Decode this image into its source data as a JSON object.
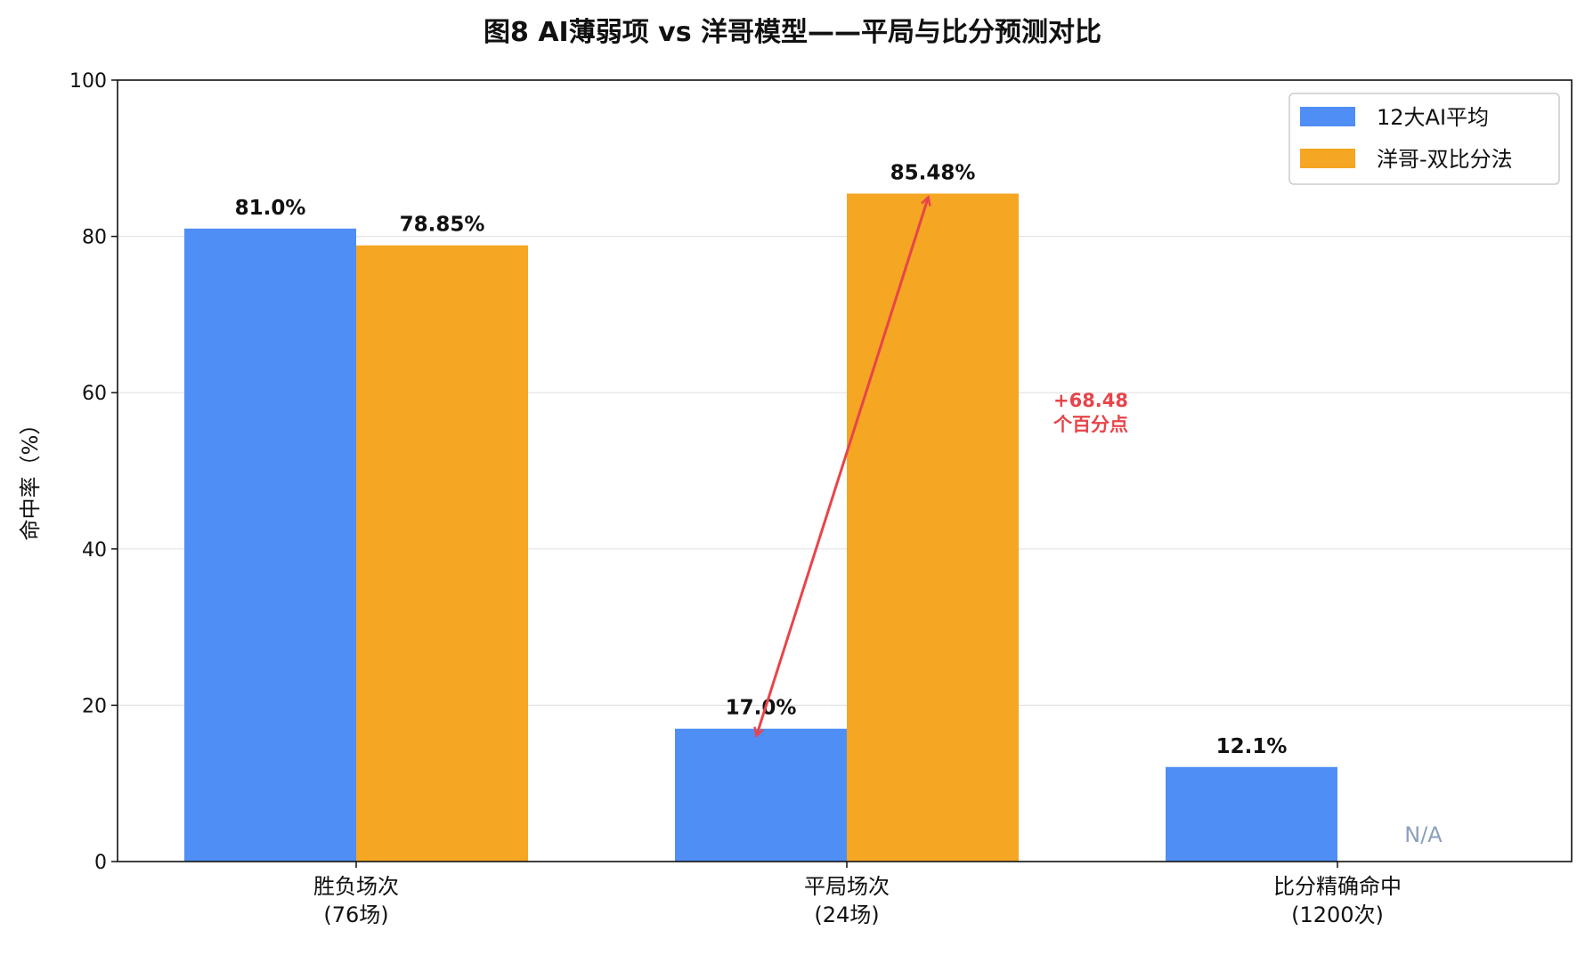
{
  "chart_data": {
    "type": "bar",
    "title": "图8  AI薄弱项 vs 洋哥模型——平局与比分预测对比",
    "ylabel": "命中率（%）",
    "ylim": [
      0,
      100
    ],
    "yticks": [
      0,
      20,
      40,
      60,
      80,
      100
    ],
    "grid": true,
    "legend_position": "top-right",
    "categories": [
      [
        "胜负场次",
        "(76场)"
      ],
      [
        "平局场次",
        "(24场)"
      ],
      [
        "比分精确命中",
        "(1200次)"
      ]
    ],
    "series": [
      {
        "name": "12大AI平均",
        "color": "#4f8ef5",
        "values": [
          81.0,
          17.0,
          12.1
        ],
        "labels": [
          "81.0%",
          "17.0%",
          "12.1%"
        ]
      },
      {
        "name": "洋哥-双比分法",
        "color": "#f5a623",
        "values": [
          78.85,
          85.48,
          null
        ],
        "labels": [
          "78.85%",
          "85.48%",
          "N/A"
        ]
      }
    ],
    "annotation": {
      "lines": [
        "+68.48",
        "个百分点"
      ],
      "color": "#e8444a",
      "from": {
        "category": 1,
        "value": 17.0
      },
      "to": {
        "category": 1,
        "value": 85.48
      }
    },
    "na_color": "#8aa0bd"
  }
}
